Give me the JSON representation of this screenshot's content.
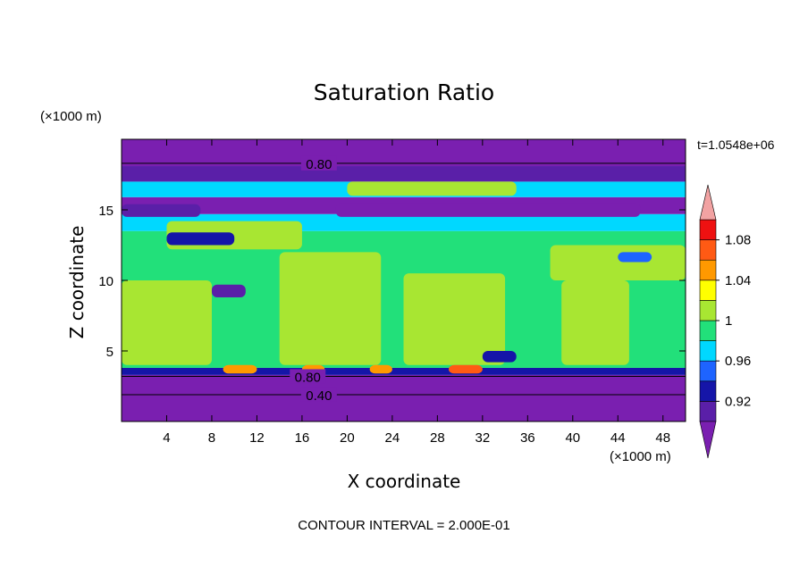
{
  "chart_data": {
    "type": "heatmap",
    "title": "Saturation Ratio",
    "xlabel": "X coordinate",
    "ylabel": "Z coordinate",
    "x_unit": "(×1000 m)",
    "y_unit": "(×1000 m)",
    "time_label": "t=1.0548e+06",
    "footer": "CONTOUR INTERVAL = 2.000E-01",
    "xlim": [
      0,
      50
    ],
    "ylim": [
      0,
      20
    ],
    "x_ticks": [
      4,
      8,
      12,
      16,
      20,
      24,
      28,
      32,
      36,
      40,
      44,
      48
    ],
    "y_ticks": [
      5,
      10,
      15
    ],
    "contour_labels": [
      {
        "text": "0.80",
        "x": 17.5,
        "z": 18.3
      },
      {
        "text": "0.80",
        "x": 16.5,
        "z": 3.2
      },
      {
        "text": "0.40",
        "x": 17.5,
        "z": 1.9
      }
    ],
    "colorbar": {
      "labels": [
        "1.08",
        "1.04",
        "1",
        "0.96",
        "0.92"
      ],
      "bins": [
        {
          "min": null,
          "max": 0.9,
          "color": "#7a1fb0"
        },
        {
          "min": 0.9,
          "max": 0.92,
          "color": "#5a1fa8"
        },
        {
          "min": 0.92,
          "max": 0.94,
          "color": "#1515a8"
        },
        {
          "min": 0.94,
          "max": 0.96,
          "color": "#1e64ff"
        },
        {
          "min": 0.96,
          "max": 0.98,
          "color": "#00d8ff"
        },
        {
          "min": 0.98,
          "max": 1.0,
          "color": "#22e07a"
        },
        {
          "min": 1.0,
          "max": 1.02,
          "color": "#a8e632"
        },
        {
          "min": 1.02,
          "max": 1.04,
          "color": "#ffff00"
        },
        {
          "min": 1.04,
          "max": 1.06,
          "color": "#ff9900"
        },
        {
          "min": 1.06,
          "max": 1.08,
          "color": "#ff5a14"
        },
        {
          "min": 1.08,
          "max": 1.1,
          "color": "#ee1111"
        },
        {
          "min": 1.1,
          "max": null,
          "color": "#f2a2a2"
        }
      ]
    },
    "layers": [
      {
        "z": [
          0,
          3.3
        ],
        "value": 0.5
      },
      {
        "z": [
          3.3,
          3.8
        ],
        "value": 0.93
      },
      {
        "z": [
          3.8,
          13.5
        ],
        "value": 0.99
      },
      {
        "z": [
          13.5,
          14.7
        ],
        "value": 0.97
      },
      {
        "z": [
          14.7,
          15.9
        ],
        "value": 0.89
      },
      {
        "z": [
          15.9,
          17.0
        ],
        "value": 0.97
      },
      {
        "z": [
          17.0,
          18.1
        ],
        "value": 0.9
      },
      {
        "z": [
          18.1,
          20
        ],
        "value": 0.85
      }
    ],
    "features": [
      {
        "x": [
          0,
          8
        ],
        "z": [
          4,
          10
        ],
        "value": 1.01
      },
      {
        "x": [
          4,
          16
        ],
        "z": [
          12.2,
          14.2
        ],
        "value": 1.01
      },
      {
        "x": [
          14,
          23
        ],
        "z": [
          4,
          12
        ],
        "value": 1.01
      },
      {
        "x": [
          25,
          34
        ],
        "z": [
          4,
          10.5
        ],
        "value": 1.01
      },
      {
        "x": [
          39,
          45
        ],
        "z": [
          4,
          10
        ],
        "value": 1.01
      },
      {
        "x": [
          38,
          50
        ],
        "z": [
          10,
          12.5
        ],
        "value": 1.01
      },
      {
        "x": [
          20,
          35
        ],
        "z": [
          16,
          17
        ],
        "value": 1.01
      },
      {
        "x": [
          0,
          7
        ],
        "z": [
          14.5,
          15.4
        ],
        "value": 0.9
      },
      {
        "x": [
          19,
          46
        ],
        "z": [
          14.5,
          15.5
        ],
        "value": 0.89
      },
      {
        "x": [
          4,
          10
        ],
        "z": [
          12.5,
          13.4
        ],
        "value": 0.93
      },
      {
        "x": [
          8,
          11
        ],
        "z": [
          8.8,
          9.7
        ],
        "value": 0.91
      },
      {
        "x": [
          32,
          35
        ],
        "z": [
          4.2,
          5.0
        ],
        "value": 0.92
      },
      {
        "x": [
          44,
          47
        ],
        "z": [
          11.3,
          12.0
        ],
        "value": 0.94
      },
      {
        "x": [
          9,
          12
        ],
        "z": [
          3.4,
          4.0
        ],
        "value": 1.05
      },
      {
        "x": [
          22,
          24
        ],
        "z": [
          3.4,
          4.0
        ],
        "value": 1.05
      },
      {
        "x": [
          29,
          32
        ],
        "z": [
          3.4,
          4.0
        ],
        "value": 1.06
      },
      {
        "x": [
          16,
          18
        ],
        "z": [
          3.4,
          4.0
        ],
        "value": 1.05
      }
    ]
  }
}
